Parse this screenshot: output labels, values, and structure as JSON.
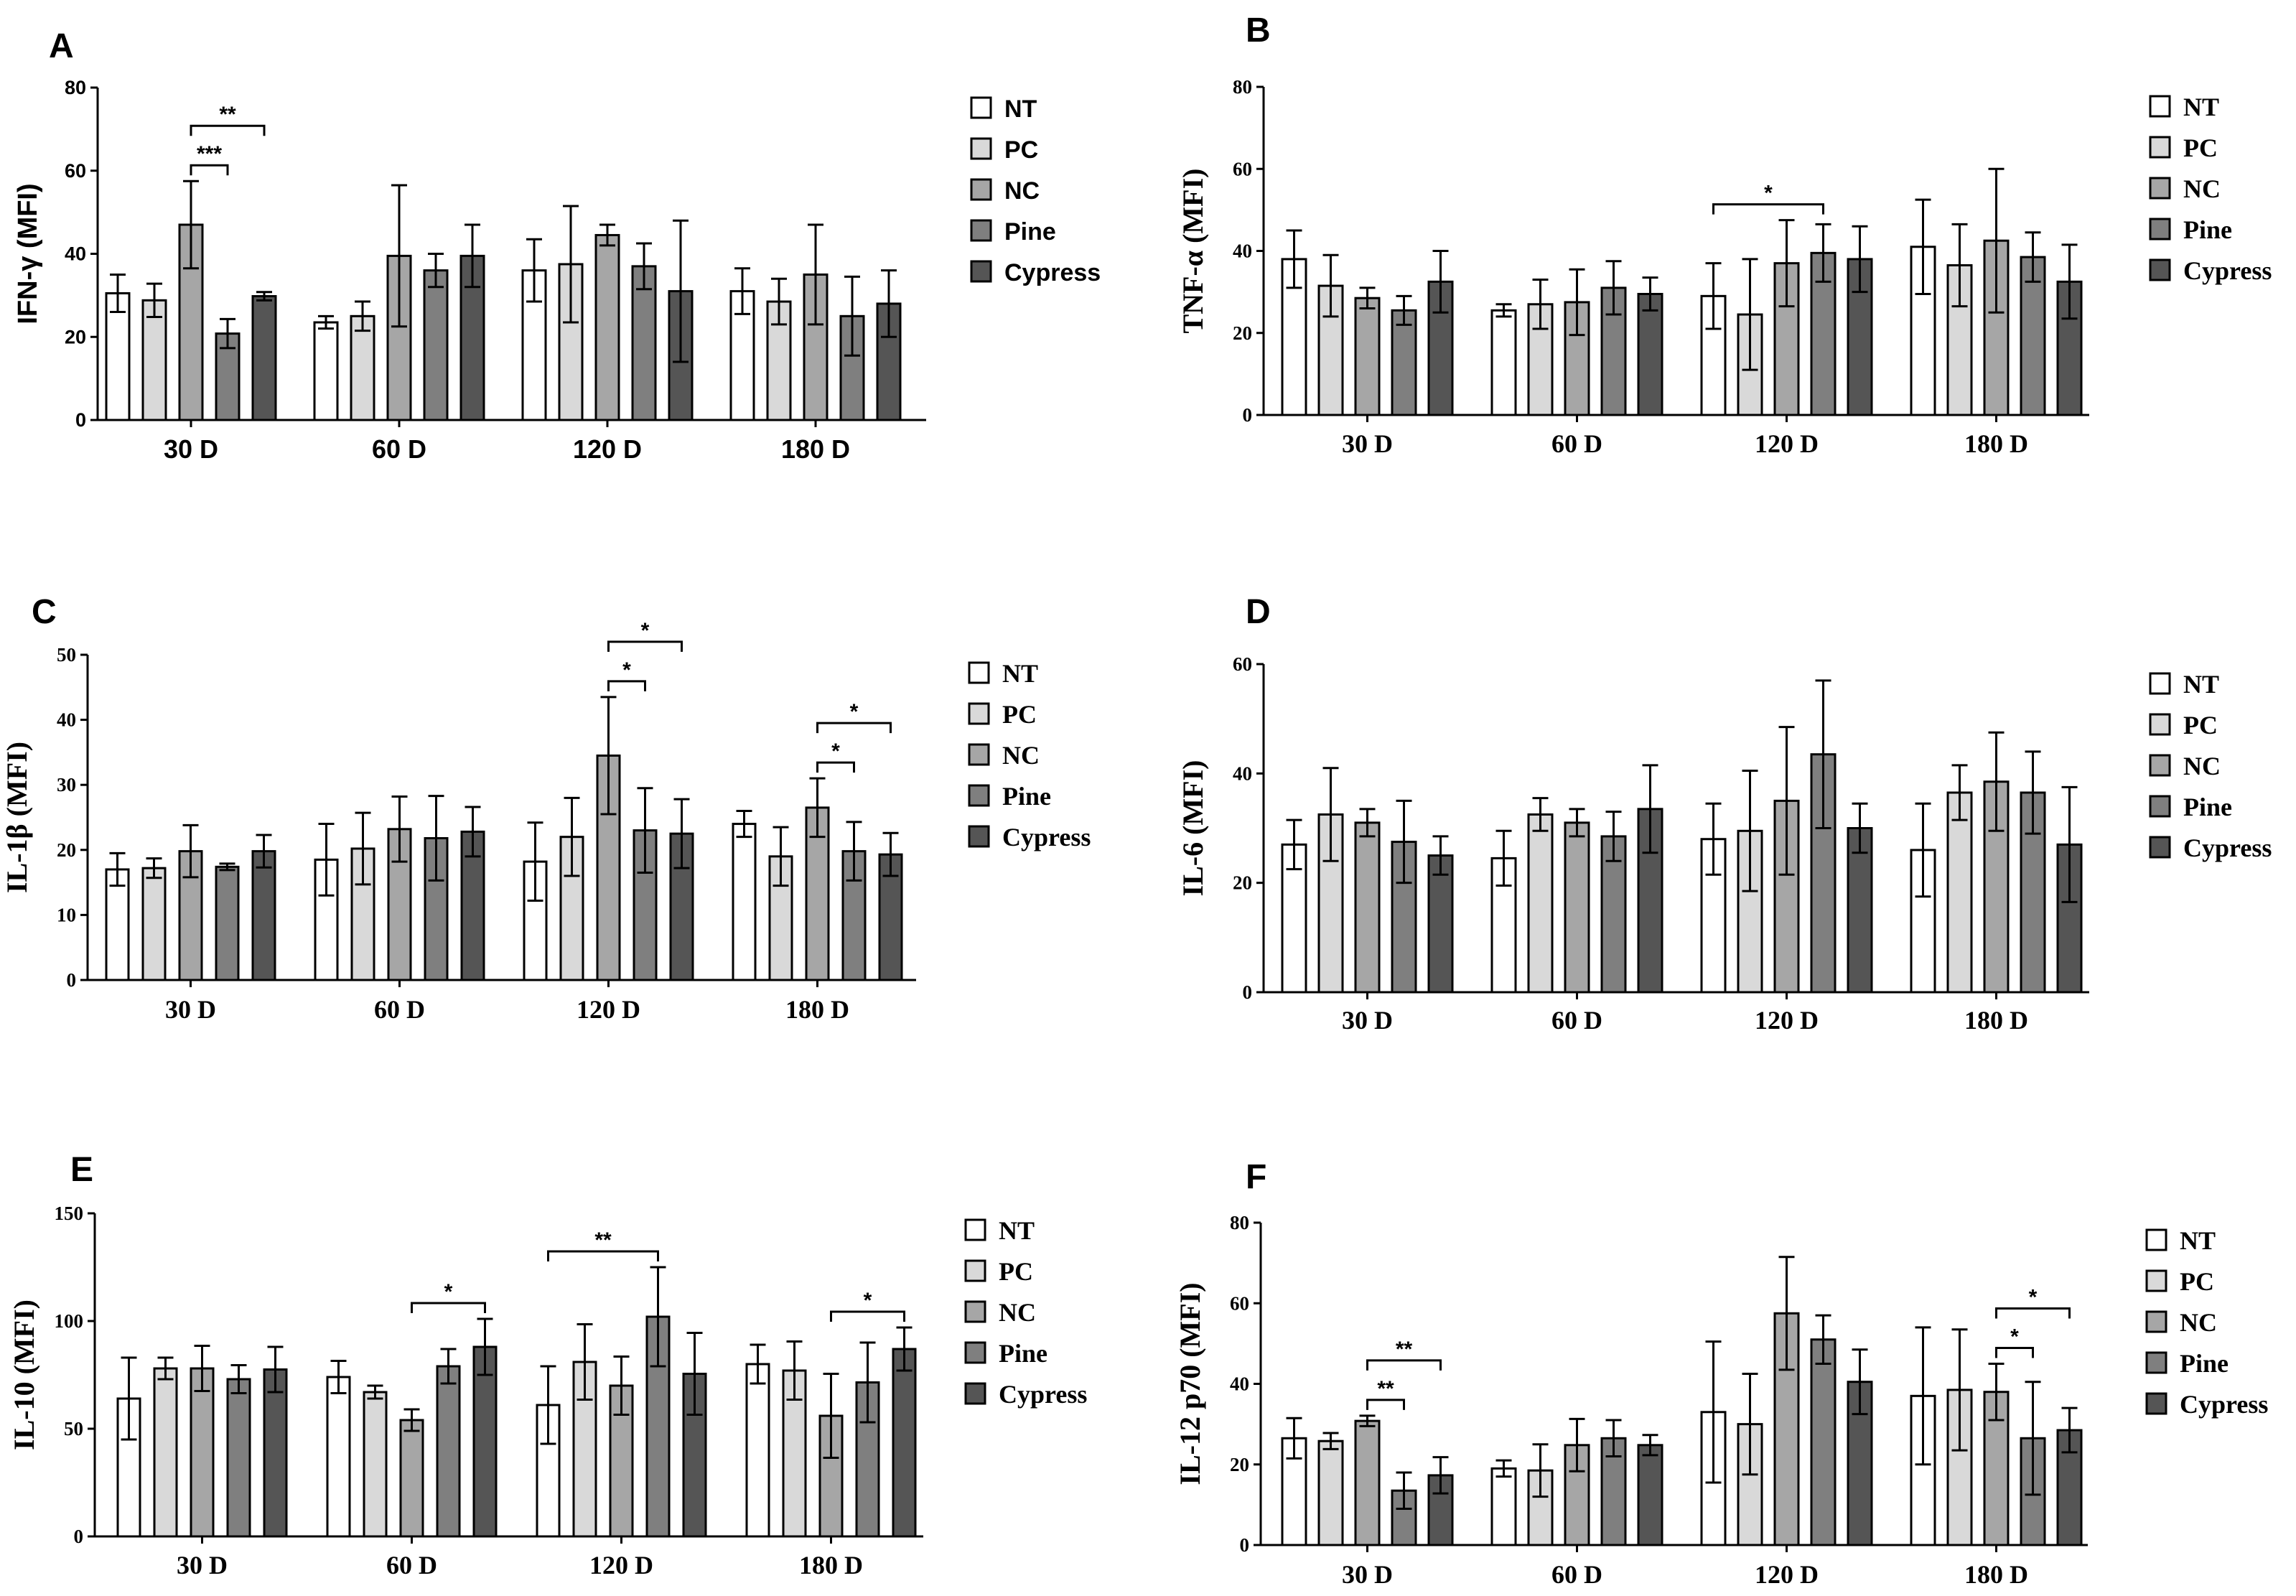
{
  "colors": {
    "NT": "#ffffff",
    "PC": "#d9d9d9",
    "NC": "#a6a6a6",
    "Pine": "#7f7f7f",
    "Cypress": "#555555",
    "stroke": "#000000"
  },
  "chart_data": [
    {
      "panel": "A",
      "type": "bar",
      "ylabel": "IFN-γ (MFI)",
      "ylim": [
        0,
        80
      ],
      "yticks": [
        0,
        20,
        40,
        60,
        80
      ],
      "categories": [
        "30 D",
        "60 D",
        "120 D",
        "180 D"
      ],
      "series": [
        {
          "name": "NT",
          "values": [
            30.5,
            23.5,
            36,
            31
          ],
          "errors": [
            4.5,
            1.5,
            7.5,
            5.5
          ]
        },
        {
          "name": "PC",
          "values": [
            28.8,
            25,
            37.5,
            28.5
          ],
          "errors": [
            4,
            3.5,
            14,
            5.5
          ]
        },
        {
          "name": "NC",
          "values": [
            47,
            39.5,
            44.5,
            35
          ],
          "errors": [
            10.5,
            17,
            2.5,
            12
          ]
        },
        {
          "name": "Pine",
          "values": [
            20.8,
            36,
            37,
            25
          ],
          "errors": [
            3.5,
            4,
            5.5,
            9.5
          ]
        },
        {
          "name": "Cypress",
          "values": [
            29.8,
            39.5,
            31,
            28
          ],
          "errors": [
            1,
            7.5,
            17,
            8
          ]
        }
      ],
      "significance": [
        {
          "group": 0,
          "from": "NC",
          "to": "Pine",
          "label": "***"
        },
        {
          "group": 0,
          "from": "NC",
          "to": "Cypress",
          "label": "**"
        }
      ]
    },
    {
      "panel": "B",
      "type": "bar",
      "ylabel": "TNF-α (MFI)",
      "ylim": [
        0,
        80
      ],
      "yticks": [
        0,
        20,
        40,
        60,
        80
      ],
      "categories": [
        "30 D",
        "60 D",
        "120 D",
        "180 D"
      ],
      "series": [
        {
          "name": "NT",
          "values": [
            38,
            25.5,
            29,
            41
          ],
          "errors": [
            7,
            1.5,
            8,
            11.5
          ]
        },
        {
          "name": "PC",
          "values": [
            31.5,
            27,
            24.5,
            36.5
          ],
          "errors": [
            7.5,
            6,
            13.5,
            10
          ]
        },
        {
          "name": "NC",
          "values": [
            28.5,
            27.5,
            37,
            42.5
          ],
          "errors": [
            2.5,
            8,
            10.5,
            17.5
          ]
        },
        {
          "name": "Pine",
          "values": [
            25.5,
            31,
            39.5,
            38.5
          ],
          "errors": [
            3.5,
            6.5,
            7,
            6
          ]
        },
        {
          "name": "Cypress",
          "values": [
            32.5,
            29.5,
            38,
            32.5
          ],
          "errors": [
            7.5,
            4,
            8,
            9
          ]
        }
      ],
      "significance": [
        {
          "group": 2,
          "from": "NT",
          "to": "Pine",
          "label": "*"
        }
      ]
    },
    {
      "panel": "C",
      "type": "bar",
      "ylabel": "IL-1β (MFI)",
      "ylim": [
        0,
        50
      ],
      "yticks": [
        0,
        10,
        20,
        30,
        40,
        50
      ],
      "categories": [
        "30 D",
        "60 D",
        "120 D",
        "180 D"
      ],
      "series": [
        {
          "name": "NT",
          "values": [
            17,
            18.5,
            18.2,
            24
          ],
          "errors": [
            2.5,
            5.5,
            6,
            2
          ]
        },
        {
          "name": "PC",
          "values": [
            17.2,
            20.2,
            22,
            19
          ],
          "errors": [
            1.5,
            5.5,
            6,
            4.5
          ]
        },
        {
          "name": "NC",
          "values": [
            19.8,
            23.2,
            34.5,
            26.5
          ],
          "errors": [
            4,
            5,
            9,
            4.5
          ]
        },
        {
          "name": "Pine",
          "values": [
            17.4,
            21.8,
            23,
            19.8
          ],
          "errors": [
            0.5,
            6.5,
            6.5,
            4.5
          ]
        },
        {
          "name": "Cypress",
          "values": [
            19.8,
            22.8,
            22.5,
            19.3
          ],
          "errors": [
            2.5,
            3.8,
            5.3,
            3.3
          ]
        }
      ],
      "significance": [
        {
          "group": 2,
          "from": "NC",
          "to": "Pine",
          "label": "*"
        },
        {
          "group": 2,
          "from": "NC",
          "to": "Cypress",
          "label": "*"
        },
        {
          "group": 3,
          "from": "NC",
          "to": "Pine",
          "label": "*"
        },
        {
          "group": 3,
          "from": "NC",
          "to": "Cypress",
          "label": "*"
        }
      ]
    },
    {
      "panel": "D",
      "type": "bar",
      "ylabel": "IL-6 (MFI)",
      "ylim": [
        0,
        60
      ],
      "yticks": [
        0,
        20,
        40,
        60
      ],
      "categories": [
        "30 D",
        "60 D",
        "120 D",
        "180 D"
      ],
      "series": [
        {
          "name": "NT",
          "values": [
            27,
            24.5,
            28,
            26
          ]
        },
        {
          "name": "PC",
          "values": [
            32.5,
            32.5,
            29.5,
            36.5
          ]
        },
        {
          "name": "NC",
          "values": [
            31,
            31,
            35,
            38.5
          ]
        },
        {
          "name": "Pine",
          "values": [
            27.5,
            28.5,
            43.5,
            36.5
          ]
        },
        {
          "name": "Cypress",
          "values": [
            25,
            33.5,
            30,
            27
          ]
        }
      ],
      "errors": [
        [
          4.5,
          5,
          6.5,
          8.5
        ],
        [
          8.5,
          3,
          11,
          5
        ],
        [
          2.5,
          2.5,
          13.5,
          9
        ],
        [
          7.5,
          4.5,
          13.5,
          7.5
        ],
        [
          3.5,
          8,
          4.5,
          10.5
        ]
      ],
      "significance": []
    },
    {
      "panel": "E",
      "type": "bar",
      "ylabel": "IL-10 (MFI)",
      "ylim": [
        0,
        150
      ],
      "yticks": [
        0,
        50,
        100,
        150
      ],
      "categories": [
        "30 D",
        "60 D",
        "120 D",
        "180 D"
      ],
      "series": [
        {
          "name": "NT",
          "values": [
            64,
            74,
            61,
            80
          ],
          "errors": [
            19,
            7.5,
            18,
            9
          ]
        },
        {
          "name": "PC",
          "values": [
            78,
            67,
            81,
            77
          ],
          "errors": [
            5,
            3,
            17.5,
            13.5
          ]
        },
        {
          "name": "NC",
          "values": [
            78,
            54,
            70,
            56
          ],
          "errors": [
            10.5,
            5,
            13.5,
            19.5
          ]
        },
        {
          "name": "Pine",
          "values": [
            73,
            79,
            102,
            71.5
          ],
          "errors": [
            6.5,
            8,
            23,
            18.5
          ]
        },
        {
          "name": "Cypress",
          "values": [
            77.5,
            88,
            75.5,
            87
          ],
          "errors": [
            10.5,
            13,
            19,
            10
          ]
        }
      ],
      "significance": [
        {
          "group": 1,
          "from": "NC",
          "to": "Cypress",
          "label": "*"
        },
        {
          "group": 2,
          "from": "NT",
          "to": "Pine",
          "label": "**"
        },
        {
          "group": 3,
          "from": "NC",
          "to": "Cypress",
          "label": "*"
        }
      ]
    },
    {
      "panel": "F",
      "type": "bar",
      "ylabel": "IL-12 p70 (MFI)",
      "ylim": [
        0,
        80
      ],
      "yticks": [
        0,
        20,
        40,
        60,
        80
      ],
      "categories": [
        "30 D",
        "60 D",
        "120 D",
        "180 D"
      ],
      "series": [
        {
          "name": "NT",
          "values": [
            26.5,
            19,
            33,
            37
          ],
          "errors": [
            5,
            2,
            17.5,
            17
          ]
        },
        {
          "name": "PC",
          "values": [
            25.8,
            18.5,
            30,
            38.5
          ],
          "errors": [
            2,
            6.5,
            12.5,
            15
          ]
        },
        {
          "name": "NC",
          "values": [
            30.8,
            24.8,
            57.5,
            38
          ],
          "errors": [
            1.3,
            6.5,
            14,
            7
          ]
        },
        {
          "name": "Pine",
          "values": [
            13.5,
            26.5,
            51,
            26.5
          ],
          "errors": [
            4.5,
            4.5,
            6,
            14
          ]
        },
        {
          "name": "Cypress",
          "values": [
            17.3,
            24.8,
            40.5,
            28.5
          ],
          "errors": [
            4.5,
            2.5,
            8,
            5.5
          ]
        }
      ],
      "significance": [
        {
          "group": 0,
          "from": "NC",
          "to": "Pine",
          "label": "**"
        },
        {
          "group": 0,
          "from": "NC",
          "to": "Cypress",
          "label": "**"
        },
        {
          "group": 3,
          "from": "NC",
          "to": "Pine",
          "label": "*"
        },
        {
          "group": 3,
          "from": "NC",
          "to": "Cypress",
          "label": "*"
        }
      ]
    }
  ],
  "legend": [
    "NT",
    "PC",
    "NC",
    "Pine",
    "Cypress"
  ]
}
